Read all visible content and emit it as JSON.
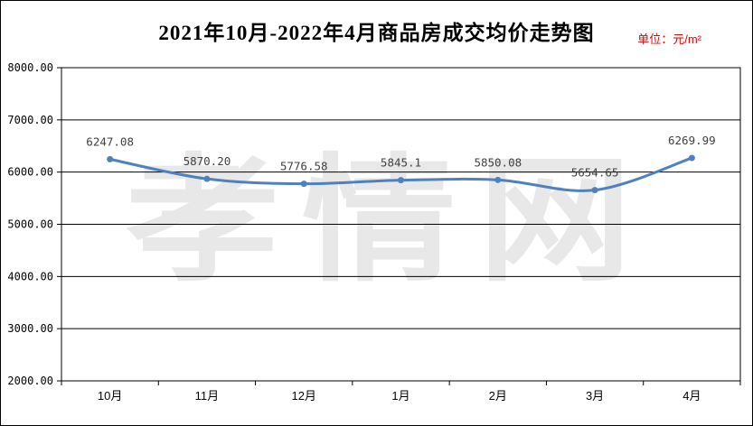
{
  "title": "2021年10月-2022年4月商品房成交均价走势图",
  "unit_label": "单位：元/m²",
  "watermark": "孝情网",
  "colors": {
    "line": "#4F81BD",
    "unit_text": "#E60000",
    "grid": "#000000",
    "value_label": "#404040",
    "watermark": "#E8E8E8",
    "background": "#FFFFFF"
  },
  "chart_data": {
    "type": "line",
    "title": "2021年10月-2022年4月商品房成交均价走势图",
    "unit": "元/m²",
    "categories": [
      "10月",
      "11月",
      "12月",
      "1月",
      "2月",
      "3月",
      "4月"
    ],
    "series": [
      {
        "name": "商品房成交均价",
        "values": [
          6247.08,
          5870.2,
          5776.58,
          5845.1,
          5850.08,
          5654.65,
          6269.99
        ],
        "labels": [
          "6247.08",
          "5870.20",
          "5776.58",
          "5845.1",
          "5850.08",
          "5654.65",
          "6269.99"
        ]
      }
    ],
    "xlabel": "",
    "ylabel": "元/m²",
    "ylim": [
      2000,
      8000
    ],
    "ytick_step": 1000,
    "ytick_labels": [
      "2000.00",
      "3000.00",
      "4000.00",
      "5000.00",
      "6000.00",
      "7000.00",
      "8000.00"
    ],
    "grid": "horizontal",
    "legend": "none",
    "smooth": true,
    "marker": "circle"
  }
}
